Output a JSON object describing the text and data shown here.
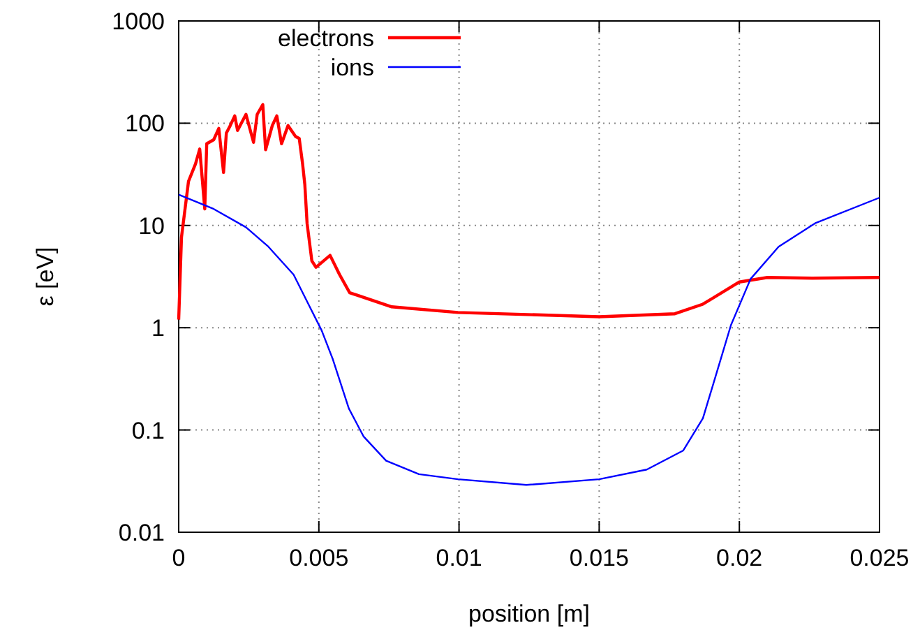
{
  "chart_data": {
    "type": "line",
    "xlabel": "position [m]",
    "ylabel": "ε [eV]",
    "log": "y",
    "grid": true,
    "legend": "top left",
    "line_style": "solid",
    "marker": "none",
    "xlim": [
      0,
      0.025
    ],
    "ylim": [
      0.01,
      1000
    ],
    "xticks": [
      0,
      0.005,
      0.01,
      0.015,
      0.02,
      0.025
    ],
    "yticks": [
      0.01,
      0.1,
      1,
      10,
      100,
      1000
    ],
    "series": [
      {
        "name": "electrons",
        "color": "#ff0000",
        "x": [
          0,
          0.0001,
          0.00035,
          0.0006,
          0.00075,
          0.00093,
          0.001,
          0.00125,
          0.00143,
          0.0016,
          0.0017,
          0.00184,
          0.002,
          0.0021,
          0.0024,
          0.00267,
          0.0028,
          0.003,
          0.0031,
          0.00334,
          0.0035,
          0.00367,
          0.0039,
          0.00417,
          0.0043,
          0.00442,
          0.0045,
          0.00458,
          0.00475,
          0.0049,
          0.0054,
          0.00574,
          0.0061,
          0.0076,
          0.00996,
          0.015,
          0.0177,
          0.0187,
          0.02,
          0.021,
          0.0226,
          0.025
        ],
        "values": [
          1.2,
          7.7,
          27,
          40,
          56,
          14.5,
          63,
          69,
          89,
          33,
          80,
          95,
          118,
          85,
          122,
          65,
          122,
          152,
          55,
          95,
          118,
          63,
          95,
          74,
          71,
          40,
          25,
          10.5,
          4.5,
          3.9,
          5.1,
          3.3,
          2.2,
          1.6,
          1.41,
          1.28,
          1.37,
          1.7,
          2.8,
          3.1,
          3.05,
          3.1
        ]
      },
      {
        "name": "ions",
        "color": "#0000ff",
        "x": [
          0,
          0.00125,
          0.0024,
          0.0032,
          0.0041,
          0.0046,
          0.0051,
          0.0055,
          0.00607,
          0.0066,
          0.0074,
          0.00857,
          0.00996,
          0.0124,
          0.015,
          0.0167,
          0.018,
          0.0187,
          0.0192,
          0.0197,
          0.0204,
          0.0214,
          0.0227,
          0.025
        ],
        "values": [
          20,
          14.5,
          9.6,
          6.2,
          3.3,
          1.76,
          0.94,
          0.49,
          0.162,
          0.086,
          0.05,
          0.037,
          0.033,
          0.029,
          0.033,
          0.041,
          0.063,
          0.13,
          0.37,
          1.06,
          3.0,
          6.2,
          10.5,
          18.7
        ]
      }
    ]
  }
}
